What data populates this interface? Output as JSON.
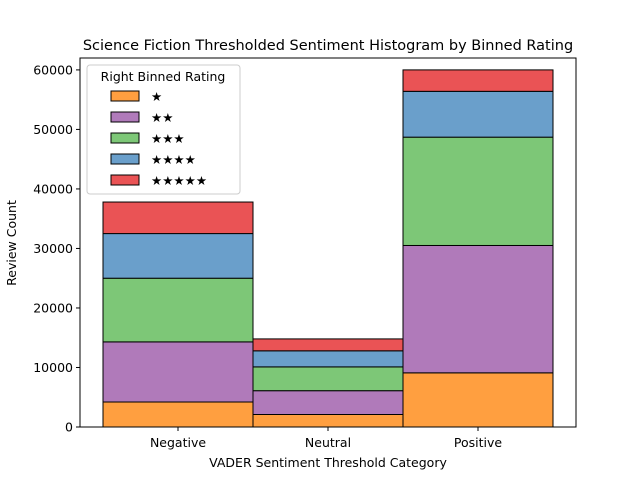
{
  "chart_data": {
    "type": "bar",
    "stacked": true,
    "title": "Science Fiction Thresholded Sentiment Histogram by Binned Rating",
    "xlabel": "VADER Sentiment Threshold Category",
    "ylabel": "Review Count",
    "categories": [
      "Negative",
      "Neutral",
      "Positive"
    ],
    "ylim": [
      0,
      62000
    ],
    "yticks": [
      "0",
      "10000",
      "20000",
      "30000",
      "40000",
      "50000",
      "60000"
    ],
    "grid": false,
    "legend": {
      "title": "Right Binned Rating",
      "placement": "top-left"
    },
    "series": [
      {
        "name": "★",
        "color": "#ff9f40",
        "values": [
          4200,
          2100,
          9100
        ]
      },
      {
        "name": "★★",
        "color": "#b07aba",
        "values": [
          10100,
          4000,
          21400
        ]
      },
      {
        "name": "★★★",
        "color": "#7dc777",
        "values": [
          10700,
          4000,
          18200
        ]
      },
      {
        "name": "★★★★",
        "color": "#6a9fcb",
        "values": [
          7500,
          2700,
          7700
        ]
      },
      {
        "name": "★★★★★",
        "color": "#ea5355",
        "values": [
          5300,
          2000,
          3600
        ]
      }
    ]
  }
}
